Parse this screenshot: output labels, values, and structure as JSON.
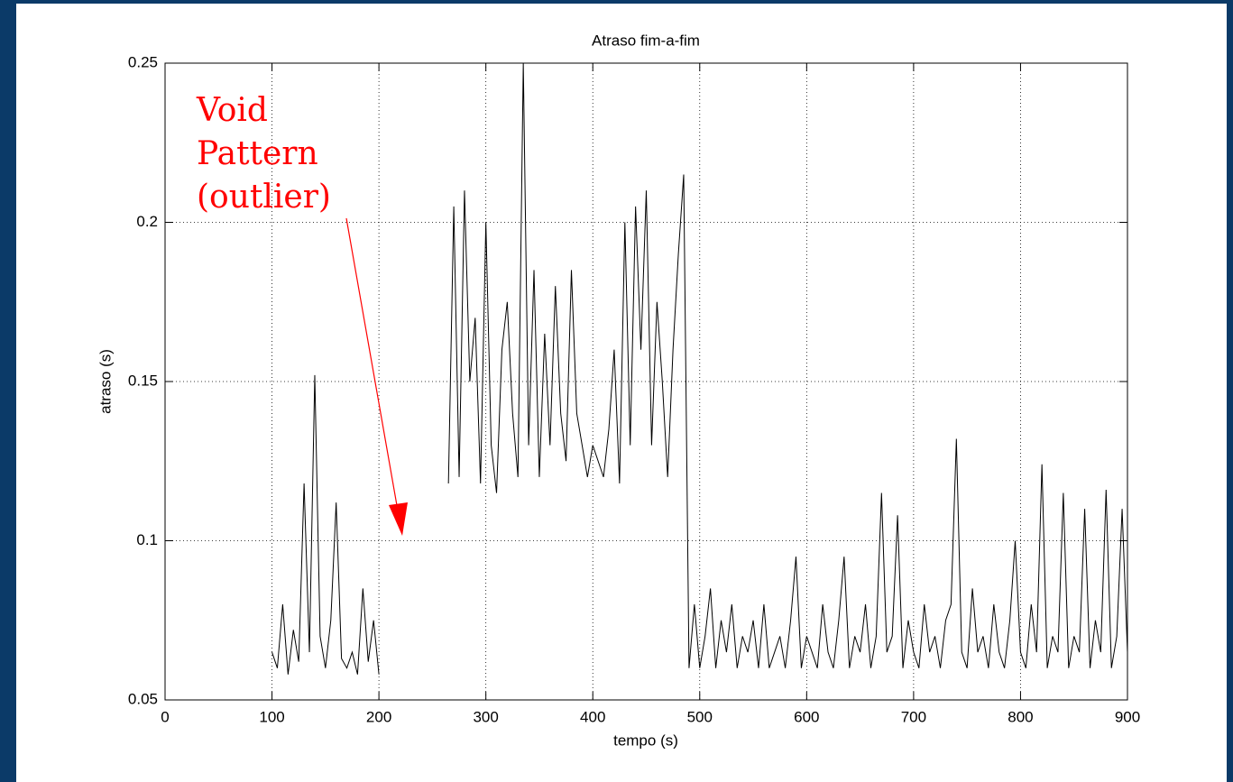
{
  "chart_data": {
    "type": "line",
    "title": "Atraso fim-a-fim",
    "xlabel": "tempo (s)",
    "ylabel": "atraso (s)",
    "annotation": [
      "Void",
      "Pattern",
      "(outlier)"
    ],
    "color": "#000000",
    "grid": true,
    "xlim": [
      0,
      900
    ],
    "xticks": [
      0,
      100,
      200,
      300,
      400,
      500,
      600,
      700,
      800,
      900
    ],
    "ylim": [
      0.05,
      0.25
    ],
    "yticks": [
      0.05,
      0.1,
      0.15,
      0.2,
      0.25
    ],
    "x": [
      100,
      105,
      110,
      115,
      120,
      125,
      130,
      135,
      140,
      145,
      150,
      155,
      160,
      165,
      170,
      175,
      180,
      185,
      190,
      195,
      200,
      230,
      265,
      270,
      275,
      280,
      285,
      290,
      295,
      300,
      305,
      310,
      315,
      320,
      325,
      330,
      335,
      340,
      345,
      350,
      355,
      360,
      365,
      370,
      375,
      380,
      385,
      390,
      395,
      400,
      405,
      410,
      415,
      420,
      425,
      430,
      435,
      440,
      445,
      450,
      455,
      460,
      465,
      470,
      475,
      480,
      485,
      490,
      495,
      500,
      505,
      510,
      515,
      520,
      525,
      530,
      535,
      540,
      545,
      550,
      555,
      560,
      565,
      570,
      575,
      580,
      585,
      590,
      595,
      600,
      605,
      610,
      615,
      620,
      625,
      630,
      635,
      640,
      645,
      650,
      655,
      660,
      665,
      670,
      675,
      680,
      685,
      690,
      695,
      700,
      705,
      710,
      715,
      720,
      725,
      730,
      735,
      740,
      745,
      750,
      755,
      760,
      765,
      770,
      775,
      780,
      785,
      790,
      795,
      800,
      805,
      810,
      815,
      820,
      825,
      830,
      835,
      840,
      845,
      850,
      855,
      860,
      865,
      870,
      875,
      880,
      885,
      890,
      895,
      900
    ],
    "values": [
      0.065,
      0.06,
      0.08,
      0.058,
      0.072,
      0.062,
      0.118,
      0.065,
      0.152,
      0.07,
      0.06,
      0.075,
      0.112,
      0.063,
      0.06,
      0.065,
      0.058,
      0.085,
      0.062,
      0.075,
      0.058,
      null,
      0.118,
      0.205,
      0.12,
      0.21,
      0.15,
      0.17,
      0.118,
      0.2,
      0.13,
      0.115,
      0.16,
      0.175,
      0.14,
      0.12,
      0.25,
      0.13,
      0.185,
      0.12,
      0.165,
      0.13,
      0.18,
      0.14,
      0.125,
      0.185,
      0.14,
      0.13,
      0.12,
      0.13,
      0.125,
      0.12,
      0.135,
      0.16,
      0.118,
      0.2,
      0.13,
      0.205,
      0.16,
      0.21,
      0.13,
      0.175,
      0.15,
      0.12,
      0.16,
      0.19,
      0.215,
      0.06,
      0.08,
      0.06,
      0.07,
      0.085,
      0.06,
      0.075,
      0.065,
      0.08,
      0.06,
      0.07,
      0.065,
      0.075,
      0.06,
      0.08,
      0.06,
      0.065,
      0.07,
      0.06,
      0.075,
      0.095,
      0.06,
      0.07,
      0.065,
      0.06,
      0.08,
      0.065,
      0.06,
      0.075,
      0.095,
      0.06,
      0.07,
      0.065,
      0.08,
      0.06,
      0.07,
      0.115,
      0.065,
      0.07,
      0.108,
      0.06,
      0.075,
      0.065,
      0.06,
      0.08,
      0.065,
      0.07,
      0.06,
      0.075,
      0.08,
      0.132,
      0.065,
      0.06,
      0.085,
      0.065,
      0.07,
      0.06,
      0.08,
      0.065,
      0.06,
      0.075,
      0.1,
      0.065,
      0.06,
      0.08,
      0.065,
      0.124,
      0.06,
      0.07,
      0.065,
      0.115,
      0.06,
      0.07,
      0.065,
      0.11,
      0.06,
      0.075,
      0.065,
      0.116,
      0.06,
      0.07,
      0.11,
      0.065
    ]
  }
}
